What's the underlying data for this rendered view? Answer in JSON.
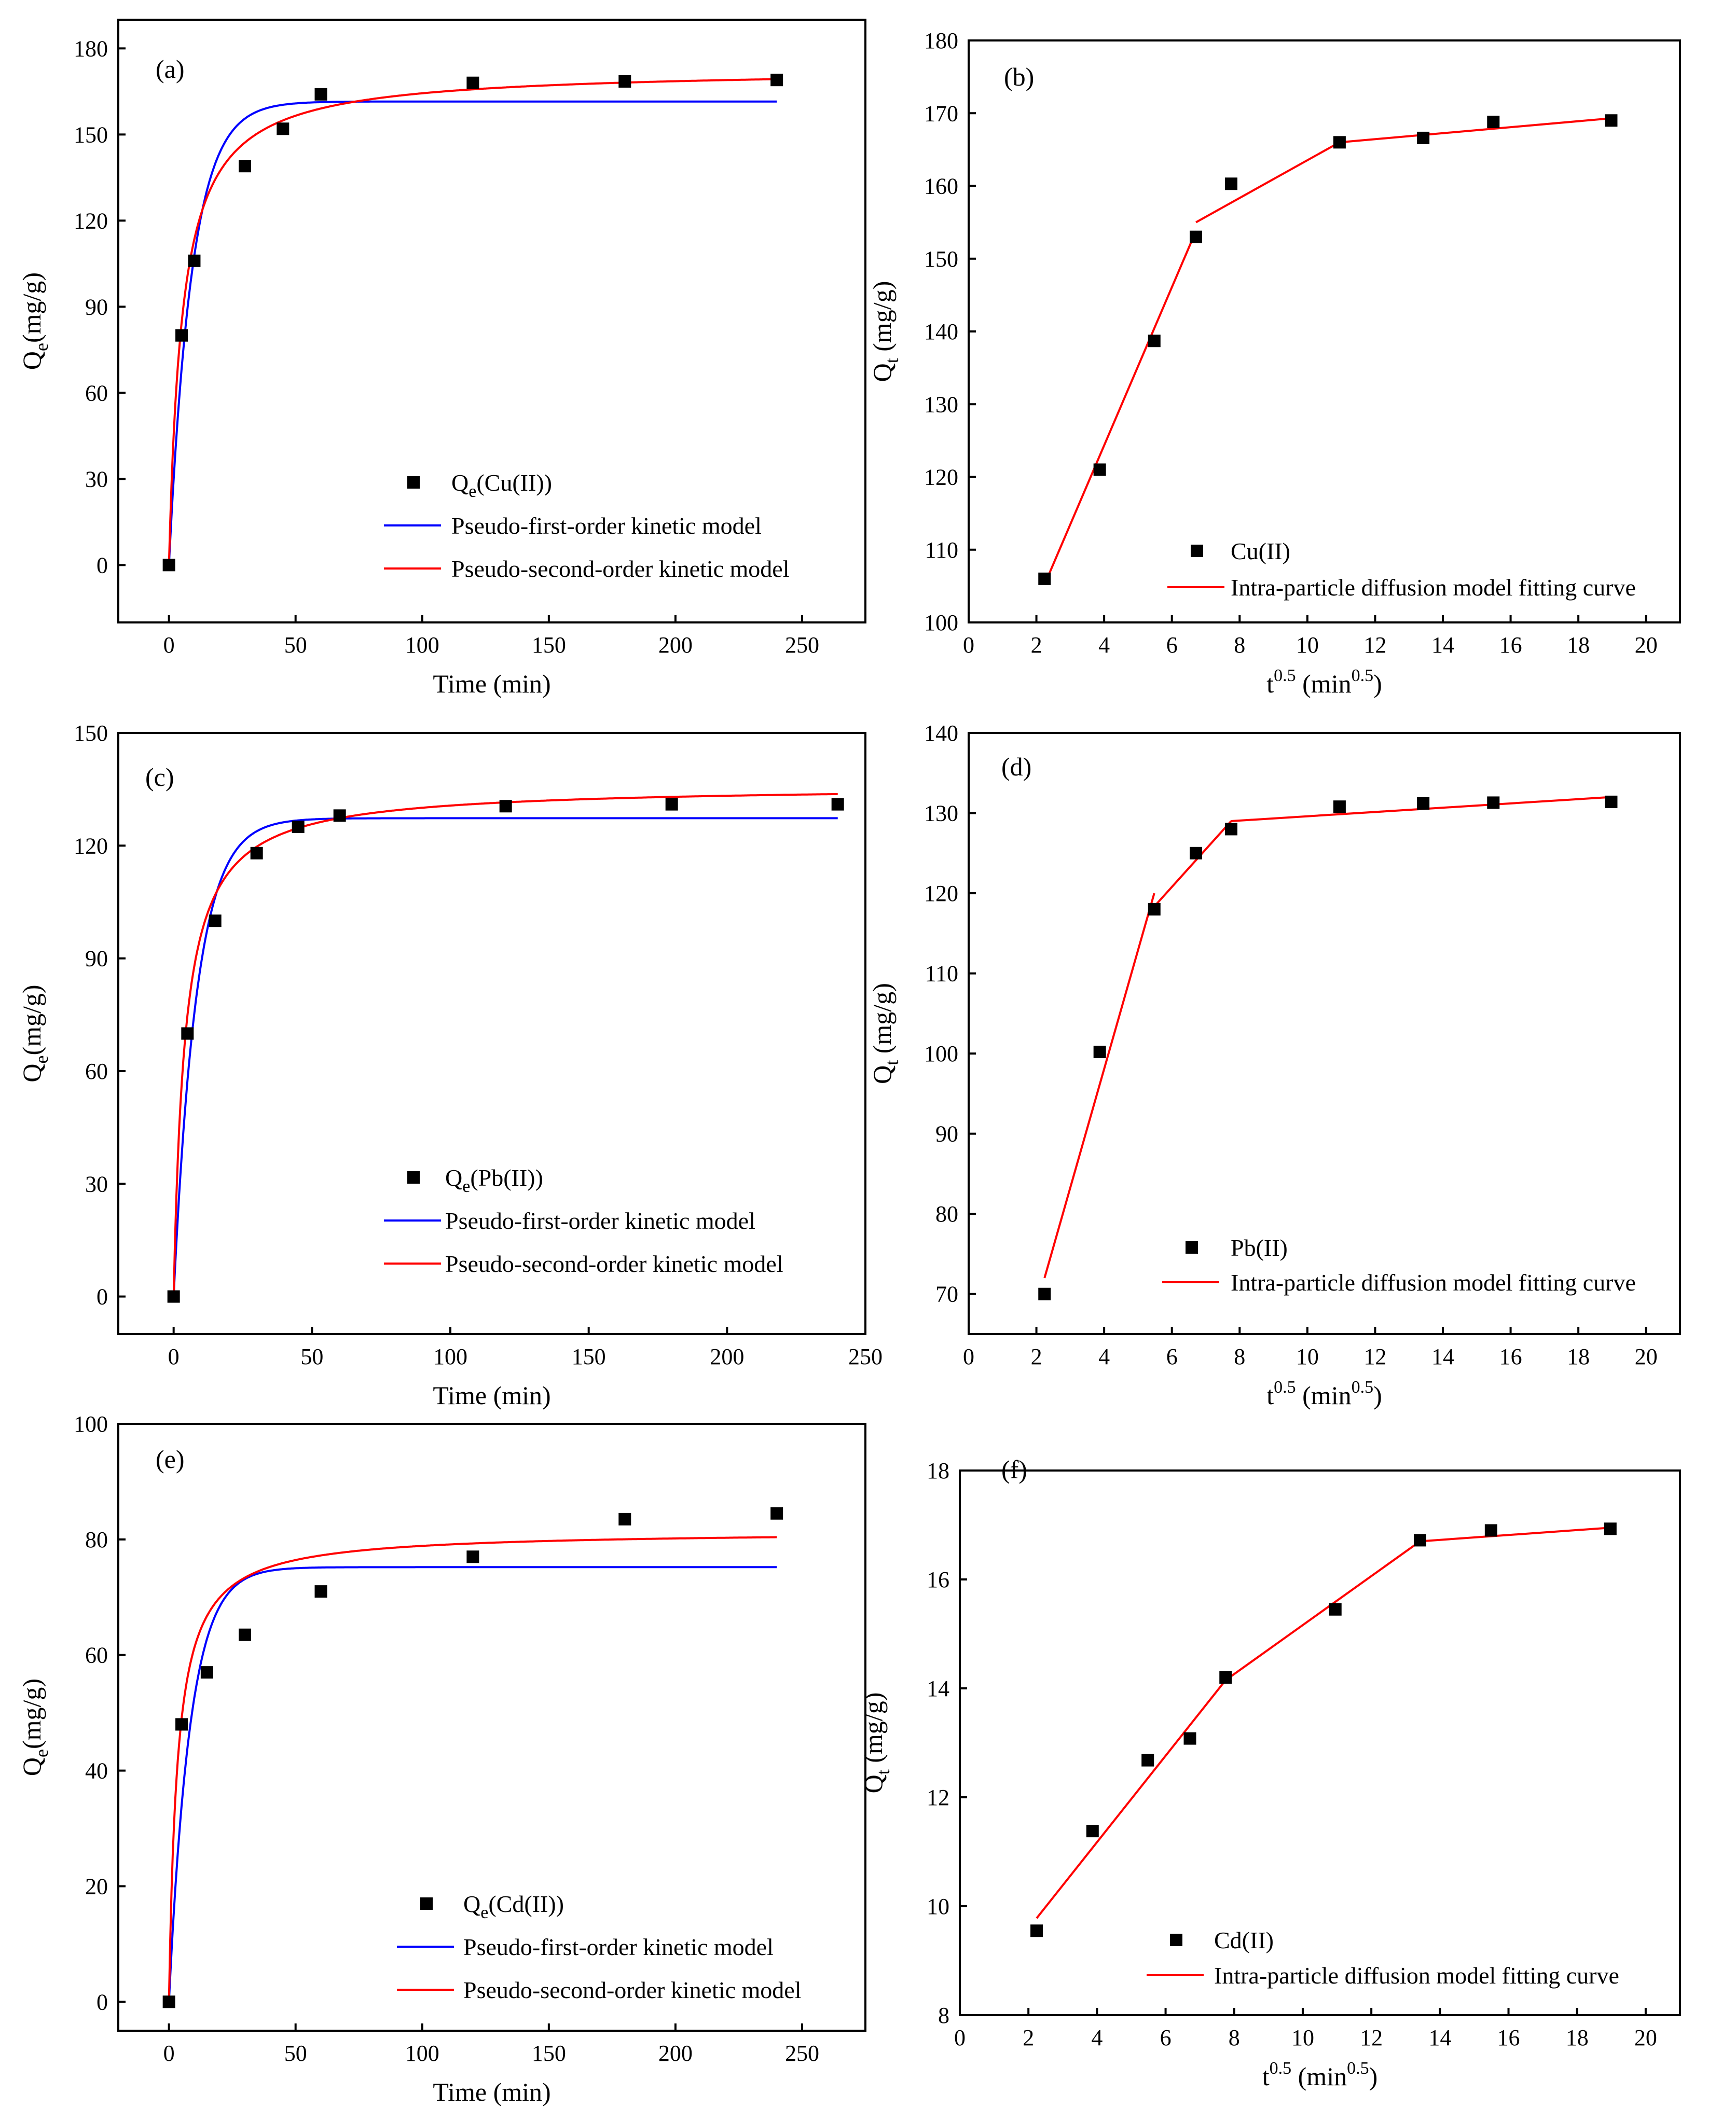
{
  "colors": {
    "data": "#000000",
    "first_order": "#0000ff",
    "second_order": "#ff0000",
    "fit": "#ff0000"
  },
  "chart_data": [
    {
      "id": "a",
      "type": "scatter",
      "panel_label": "(a)",
      "xlabel": "Time (min)",
      "ylabel_main": "Q",
      "ylabel_sub": "e",
      "ylabel_tail": "(mg/g)",
      "xlim": [
        -20,
        275
      ],
      "ylim": [
        -20,
        190
      ],
      "xticks": [
        0,
        50,
        100,
        150,
        200,
        250
      ],
      "yticks": [
        0,
        30,
        60,
        90,
        120,
        150,
        180
      ],
      "points": {
        "name": "Qe(Cu(II))",
        "name_main": "Q",
        "name_sub": "e",
        "name_tail": "(Cu(II))",
        "x": [
          0,
          5,
          10,
          30,
          45,
          60,
          120,
          180,
          240
        ],
        "y": [
          0,
          80,
          106,
          139,
          152,
          164,
          168,
          168.5,
          169
        ]
      },
      "fits": [
        {
          "kind": "pfo",
          "name": "Pseudo-first-order kinetic model",
          "qe": 161.5,
          "k": 0.11,
          "tmax": 240
        },
        {
          "kind": "pso",
          "name": "Pseudo-second-order kinetic model",
          "qe": 173,
          "k": 0.0011,
          "tmax": 240
        }
      ],
      "legend": "center-bottom"
    },
    {
      "id": "b",
      "type": "scatter",
      "panel_label": "(b)",
      "xlabel_main": "t",
      "xlabel_sup": "0.5",
      "xlabel_tail": " (min",
      "xlabel_sup2": "0.5",
      "xlabel_end": ")",
      "ylabel_main": "Q",
      "ylabel_sub": "t",
      "ylabel_tail": " (mg/g)",
      "xlim": [
        0,
        21
      ],
      "ylim": [
        100,
        180
      ],
      "xticks": [
        0,
        2,
        4,
        6,
        8,
        10,
        12,
        14,
        16,
        18,
        20
      ],
      "yticks": [
        100,
        110,
        120,
        130,
        140,
        150,
        160,
        170,
        180
      ],
      "points": {
        "name": "Cu(II)",
        "x": [
          2.24,
          3.87,
          5.48,
          6.71,
          7.75,
          10.95,
          13.42,
          15.49,
          18.97
        ],
        "y": [
          106,
          121,
          138.7,
          153,
          160.3,
          166,
          166.6,
          168.8,
          169
        ]
      },
      "fits": [
        {
          "kind": "segments",
          "name": "Intra-particle diffusion model fitting curve",
          "segments": [
            [
              [
                2.24,
                105.2
              ],
              [
                6.71,
                153.8
              ]
            ],
            [
              [
                6.71,
                155
              ],
              [
                10.95,
                166
              ]
            ],
            [
              [
                10.95,
                166
              ],
              [
                18.97,
                169.3
              ]
            ]
          ]
        }
      ],
      "legend": "bottom-right"
    },
    {
      "id": "c",
      "type": "scatter",
      "panel_label": "(c)",
      "xlabel": "Time (min)",
      "ylabel_main": "Q",
      "ylabel_sub": "e",
      "ylabel_tail": "(mg/g)",
      "xlim": [
        -20,
        250
      ],
      "ylim": [
        -10,
        150
      ],
      "xticks": [
        0,
        50,
        100,
        150,
        200,
        250
      ],
      "yticks": [
        0,
        30,
        60,
        90,
        120,
        150
      ],
      "points": {
        "name": "Qe(Pb(II))",
        "name_main": "Q",
        "name_sub": "e",
        "name_tail": "(Pb(II))",
        "x": [
          0,
          5,
          15,
          30,
          45,
          60,
          120,
          180,
          240
        ],
        "y": [
          0,
          70,
          100,
          118,
          125,
          128,
          130.5,
          131,
          131
        ]
      },
      "fits": [
        {
          "kind": "pfo",
          "name": "Pseudo-first-order kinetic model",
          "qe": 127.3,
          "k": 0.12,
          "tmax": 240
        },
        {
          "kind": "pso",
          "name": "Pseudo-second-order kinetic model",
          "qe": 136,
          "k": 0.0018,
          "tmax": 240
        }
      ],
      "legend": "center-bottom"
    },
    {
      "id": "d",
      "type": "scatter",
      "panel_label": "(d)",
      "xlabel_main": "t",
      "xlabel_sup": "0.5",
      "xlabel_tail": " (min",
      "xlabel_sup2": "0.5",
      "xlabel_end": ")",
      "ylabel_main": "Q",
      "ylabel_sub": "t",
      "ylabel_tail": " (mg/g)",
      "xlim": [
        0,
        21
      ],
      "ylim": [
        65,
        140
      ],
      "xticks": [
        0,
        2,
        4,
        6,
        8,
        10,
        12,
        14,
        16,
        18,
        20
      ],
      "yticks": [
        70,
        80,
        90,
        100,
        110,
        120,
        130,
        140
      ],
      "points": {
        "name": "Pb(II)",
        "x": [
          2.24,
          3.87,
          5.48,
          6.71,
          7.75,
          10.95,
          13.42,
          15.49,
          18.97
        ],
        "y": [
          70,
          100.2,
          118,
          125,
          128,
          130.8,
          131.2,
          131.3,
          131.4
        ]
      },
      "fits": [
        {
          "kind": "segments",
          "name": "Intra-particle diffusion model fitting curve",
          "segments": [
            [
              [
                2.24,
                72
              ],
              [
                5.48,
                120
              ]
            ],
            [
              [
                5.3,
                117.5
              ],
              [
                7.75,
                129
              ]
            ],
            [
              [
                7.75,
                129
              ],
              [
                18.97,
                132
              ]
            ]
          ]
        }
      ],
      "legend": "bottom-right"
    },
    {
      "id": "e",
      "type": "scatter",
      "panel_label": "(e)",
      "xlabel": "Time  (min)",
      "ylabel_main": "Q",
      "ylabel_sub": "e",
      "ylabel_tail": "(mg/g)",
      "xlim": [
        -20,
        275
      ],
      "ylim": [
        -5,
        100
      ],
      "xticks": [
        0,
        50,
        100,
        150,
        200,
        250
      ],
      "yticks": [
        0,
        20,
        40,
        60,
        80,
        100
      ],
      "points": {
        "name": "Qe(Cd(II))",
        "name_main": "Q",
        "name_sub": "e",
        "name_tail": "(Cd(II))",
        "x": [
          0,
          5,
          15,
          30,
          60,
          120,
          180,
          240
        ],
        "y": [
          0,
          48,
          57,
          63.5,
          71,
          77,
          83.5,
          84.5
        ]
      },
      "fits": [
        {
          "kind": "pfo",
          "name": "Pseudo-first-order kinetic model",
          "qe": 75.2,
          "k": 0.12,
          "tmax": 240
        },
        {
          "kind": "pso",
          "name": "Pseudo-second-order kinetic model",
          "qe": 81.5,
          "k": 0.0037,
          "tmax": 240
        }
      ],
      "legend": "center-bottom"
    },
    {
      "id": "f",
      "type": "scatter",
      "panel_label": "(f)",
      "xlabel_main": "t",
      "xlabel_sup": "0.5",
      "xlabel_tail": " (min",
      "xlabel_sup2": "0.5",
      "xlabel_end": ")",
      "ylabel_main": "Q",
      "ylabel_sub": "t",
      "ylabel_tail": " (mg/g)",
      "xlim": [
        0,
        21
      ],
      "ylim": [
        8,
        18
      ],
      "xticks": [
        0,
        2,
        4,
        6,
        8,
        10,
        12,
        14,
        16,
        18,
        20
      ],
      "yticks": [
        8,
        10,
        12,
        14,
        16,
        18
      ],
      "points": {
        "name": "Cd(II)",
        "x": [
          2.24,
          3.87,
          5.48,
          6.71,
          7.75,
          10.95,
          13.42,
          15.49,
          18.97
        ],
        "y": [
          9.55,
          11.38,
          12.68,
          13.08,
          14.2,
          15.45,
          16.72,
          16.9,
          16.93
        ]
      },
      "fits": [
        {
          "kind": "segments",
          "name": "Intra-particle diffusion model fitting curve",
          "segments": [
            [
              [
                2.24,
                9.78
              ],
              [
                7.75,
                14.15
              ]
            ],
            [
              [
                7.75,
                14.15
              ],
              [
                13.42,
                16.7
              ]
            ],
            [
              [
                13.42,
                16.7
              ],
              [
                18.97,
                16.95
              ]
            ]
          ]
        }
      ],
      "legend": "bottom-right"
    }
  ]
}
